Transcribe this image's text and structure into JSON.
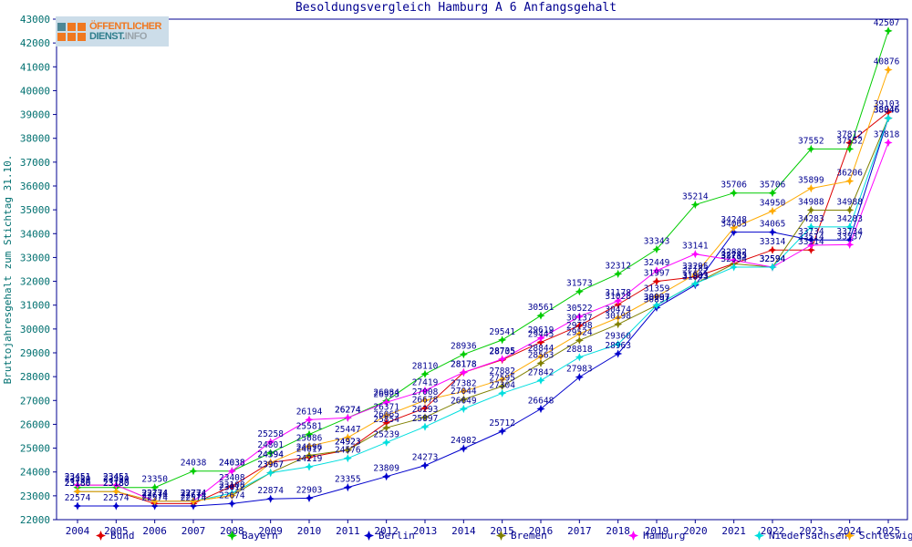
{
  "logo": {
    "line1": "ÖFFENTLICHER",
    "line2_teal": "DIENST.",
    "line2_gray": "INFO"
  },
  "title": "Besoldungsvergleich Hamburg A 6 Anfangsgehalt",
  "y_axis": {
    "label": "Bruttojahresgehalt zum Stichtag 31.10.",
    "min": 22000,
    "max": 43000,
    "step": 1000
  },
  "chart_data": {
    "type": "line",
    "title": "Besoldungsvergleich Hamburg A 6 Anfangsgehalt",
    "xlabel": "",
    "ylabel": "Bruttojahresgehalt zum Stichtag 31.10.",
    "ylim": [
      22000,
      43000
    ],
    "grid": false,
    "legend_position": "bottom",
    "point_labels": true,
    "x": [
      2004,
      2005,
      2006,
      2007,
      2008,
      2009,
      2010,
      2011,
      2012,
      2013,
      2014,
      2015,
      2016,
      2017,
      2018,
      2019,
      2020,
      2021,
      2022,
      2023,
      2024,
      2025
    ],
    "series": [
      {
        "name": "Bund",
        "color": "#dd0000",
        "values": [
          23180,
          23180,
          22674,
          22674,
          23408,
          24394,
          24617,
          24923,
          26065,
          26678,
          28178,
          28705,
          29445,
          30137,
          31028,
          31997,
          32185,
          32743,
          33314,
          33314,
          37812,
          39103
        ]
      },
      {
        "name": "Bayern",
        "color": "#00cc00",
        "values": [
          23350,
          23350,
          23350,
          24038,
          24038,
          24801,
          25581,
          26274,
          26984,
          28110,
          28936,
          29541,
          30561,
          31573,
          32312,
          33343,
          35214,
          35706,
          35706,
          37552,
          37552,
          42507
        ]
      },
      {
        "name": "Berlin",
        "color": "#0000cc",
        "values": [
          22574,
          22574,
          22574,
          22574,
          22674,
          22874,
          22903,
          23355,
          23809,
          24273,
          24982,
          25712,
          26648,
          27983,
          28963,
          30897,
          31843,
          34065,
          34065,
          33734,
          33734,
          38846
        ]
      },
      {
        "name": "Bremen",
        "color": "#808000",
        "values": [
          23451,
          23451,
          22774,
          22774,
          23012,
          23967,
          24696,
          24923,
          25854,
          26293,
          27044,
          27595,
          28563,
          29524,
          30198,
          30997,
          31903,
          32735,
          32594,
          34988,
          34988,
          38846
        ]
      },
      {
        "name": "Hamburg",
        "color": "#ff00ff",
        "values": [
          23451,
          23451,
          22774,
          22774,
          24038,
          25258,
          26194,
          26274,
          26923,
          27419,
          28178,
          28735,
          29619,
          30522,
          31178,
          32449,
          33141,
          32882,
          32594,
          33514,
          33537,
          37818
        ]
      },
      {
        "name": "Niedersachsen",
        "color": "#00dede",
        "values": [
          23180,
          23180,
          22774,
          22774,
          23108,
          23967,
          24219,
          24576,
          25239,
          25897,
          26649,
          27304,
          27842,
          28818,
          29360,
          30997,
          31903,
          32594,
          32594,
          34283,
          34283,
          38846
        ]
      },
      {
        "name": "Schleswig-Holstein",
        "color": "#ffaa00",
        "values": [
          23180,
          23180,
          22774,
          22774,
          23012,
          24394,
          25086,
          25447,
          26371,
          27008,
          27382,
          27882,
          28844,
          29798,
          30474,
          31359,
          32295,
          34248,
          34950,
          35899,
          36206,
          40876
        ]
      }
    ]
  },
  "legend": [
    "Bund",
    "Bayern",
    "Berlin",
    "Bremen",
    "Hamburg",
    "Niedersachsen",
    "Schleswig-Holstein"
  ]
}
